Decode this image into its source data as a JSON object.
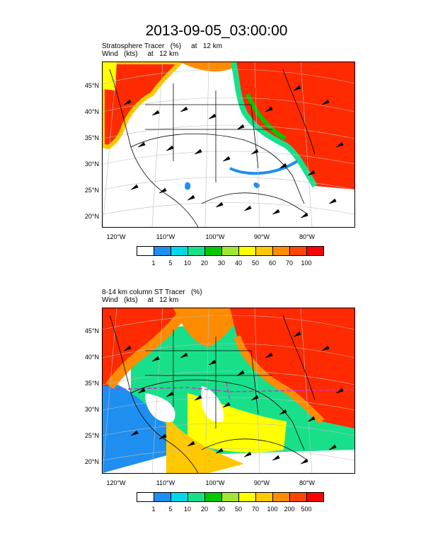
{
  "title": "2013-09-05_03:00:00",
  "panels": [
    {
      "line1": "Stratosphere Tracer   (%)     at   12 km",
      "line2": "Wind   (kts)     at   12 km",
      "lat_labels": [
        "45°N",
        "40°N",
        "35°N",
        "30°N",
        "25°N",
        "20°N"
      ],
      "lon_labels": [
        "120°W",
        "110°W",
        "100°W",
        "90°W",
        "80°W"
      ],
      "colorbar_labels": [
        "1",
        "5",
        "10",
        "20",
        "30",
        "40",
        "50",
        "60",
        "70",
        "100"
      ]
    },
    {
      "line1": "8-14 km column ST Tracer   (%)",
      "line2": "Wind   (kts)     at   12 km",
      "lat_labels": [
        "45°N",
        "40°N",
        "35°N",
        "30°N",
        "25°N",
        "20°N"
      ],
      "lon_labels": [
        "120°W",
        "110°W",
        "100°W",
        "90°W",
        "80°W"
      ],
      "colorbar_labels": [
        "1",
        "5",
        "10",
        "20",
        "30",
        "50",
        "70",
        "100",
        "200",
        "500"
      ]
    }
  ],
  "colors": {
    "scale": [
      "#ffffff",
      "#1e8ff0",
      "#00d8e8",
      "#18e08a",
      "#00c800",
      "#a0e632",
      "#ffff00",
      "#ffc800",
      "#ff8c00",
      "#ff4500",
      "#ff0000"
    ],
    "map_lines": "#000000",
    "grid_lines": "#bbbbbb",
    "accent_boundary": "#cc33cc"
  }
}
